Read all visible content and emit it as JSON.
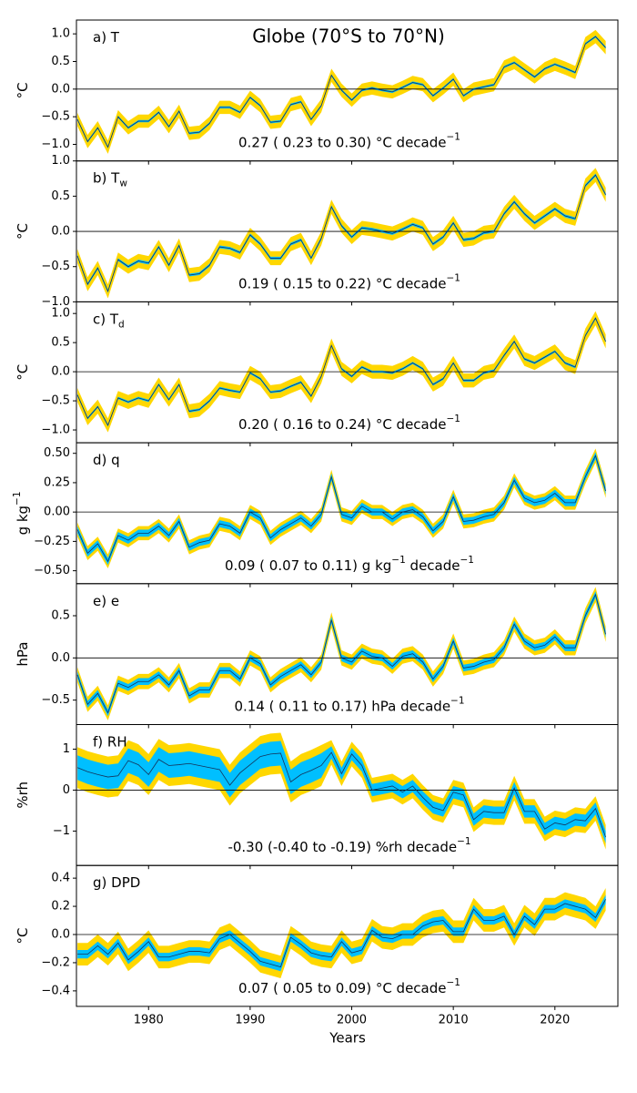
{
  "chart_data": {
    "type": "line",
    "title": "Globe (70°S to 70°N)",
    "xlabel": "Years",
    "colors": {
      "outer": "#ffd700",
      "inner": "#00bfff",
      "line": "#14325a"
    },
    "x": [
      1973,
      1974,
      1975,
      1976,
      1977,
      1978,
      1979,
      1980,
      1981,
      1982,
      1983,
      1984,
      1985,
      1986,
      1987,
      1988,
      1989,
      1990,
      1991,
      1992,
      1993,
      1994,
      1995,
      1996,
      1997,
      1998,
      1999,
      2000,
      2001,
      2002,
      2003,
      2004,
      2005,
      2006,
      2007,
      2008,
      2009,
      2010,
      2011,
      2012,
      2013,
      2014,
      2015,
      2016,
      2017,
      2018,
      2019,
      2020,
      2021,
      2022,
      2023,
      2024,
      2025
    ],
    "xlim": [
      1972.9,
      2026.2
    ],
    "xticks": [
      1980,
      1990,
      2000,
      2010,
      2020
    ],
    "panels": [
      {
        "label": [
          "a) T"
        ],
        "ylabel": [
          "°C"
        ],
        "trend": [
          "0.27 ( 0.23 to  0.30) °C decade",
          "−1"
        ],
        "ylim": [
          -1.3,
          1.25
        ],
        "yticks": [
          {
            "value": 1.0,
            "label": "1.0"
          },
          {
            "value": 0.5,
            "label": "0.5"
          },
          {
            "value": 0.0,
            "label": "0.0"
          },
          {
            "value": -0.5,
            "label": "−0.5"
          },
          {
            "value": -1.0,
            "label": "−1.0"
          }
        ],
        "band_inner": 0.02,
        "band_outer": 0.12,
        "values": [
          -0.55,
          -0.95,
          -0.7,
          -1.05,
          -0.5,
          -0.7,
          -0.58,
          -0.58,
          -0.42,
          -0.68,
          -0.4,
          -0.8,
          -0.78,
          -0.62,
          -0.33,
          -0.33,
          -0.42,
          -0.15,
          -0.3,
          -0.6,
          -0.58,
          -0.28,
          -0.23,
          -0.55,
          -0.3,
          0.25,
          -0.02,
          -0.2,
          -0.02,
          0.02,
          -0.02,
          -0.05,
          0.03,
          0.12,
          0.08,
          -0.12,
          0.02,
          0.18,
          -0.12,
          0.0,
          0.04,
          0.08,
          0.4,
          0.48,
          0.35,
          0.22,
          0.37,
          0.45,
          0.38,
          0.3,
          0.82,
          0.95,
          0.75
        ]
      },
      {
        "label": [
          "b) T",
          "w"
        ],
        "ylabel": [
          "°C"
        ],
        "trend": [
          "0.19 ( 0.15 to  0.22) °C decade",
          "−1"
        ],
        "ylim": [
          -1.0,
          1.0
        ],
        "yticks": [
          {
            "value": 1.0,
            "label": "1.0"
          },
          {
            "value": 0.5,
            "label": "0.5"
          },
          {
            "value": 0.0,
            "label": "0.0"
          },
          {
            "value": -0.5,
            "label": "−0.5"
          },
          {
            "value": -1.0,
            "label": "−1.0"
          }
        ],
        "band_inner": 0.02,
        "band_outer": 0.1,
        "values": [
          -0.35,
          -0.75,
          -0.52,
          -0.85,
          -0.4,
          -0.5,
          -0.42,
          -0.45,
          -0.22,
          -0.48,
          -0.2,
          -0.62,
          -0.6,
          -0.48,
          -0.22,
          -0.24,
          -0.3,
          -0.05,
          -0.18,
          -0.38,
          -0.38,
          -0.18,
          -0.12,
          -0.38,
          -0.1,
          0.35,
          0.08,
          -0.08,
          0.05,
          0.03,
          0.0,
          -0.03,
          0.03,
          0.1,
          0.05,
          -0.18,
          -0.08,
          0.12,
          -0.12,
          -0.1,
          -0.02,
          0.0,
          0.25,
          0.42,
          0.25,
          0.12,
          0.22,
          0.32,
          0.22,
          0.18,
          0.65,
          0.8,
          0.52
        ]
      },
      {
        "label": [
          "c) T",
          "d"
        ],
        "ylabel": [
          "°C"
        ],
        "trend": [
          "0.20 ( 0.16 to  0.24) °C decade",
          "−1"
        ],
        "ylim": [
          -1.22,
          1.2
        ],
        "yticks": [
          {
            "value": 1.0,
            "label": "1.0"
          },
          {
            "value": 0.5,
            "label": "0.5"
          },
          {
            "value": 0.0,
            "label": "0.0"
          },
          {
            "value": -0.5,
            "label": "−0.5"
          },
          {
            "value": -1.0,
            "label": "−1.0"
          }
        ],
        "band_inner": 0.02,
        "band_outer": 0.12,
        "values": [
          -0.4,
          -0.8,
          -0.6,
          -0.92,
          -0.45,
          -0.52,
          -0.45,
          -0.5,
          -0.22,
          -0.48,
          -0.22,
          -0.68,
          -0.65,
          -0.5,
          -0.28,
          -0.32,
          -0.35,
          -0.02,
          -0.12,
          -0.35,
          -0.33,
          -0.25,
          -0.18,
          -0.42,
          -0.08,
          0.45,
          0.05,
          -0.08,
          0.08,
          0.0,
          0.0,
          -0.02,
          0.05,
          0.15,
          0.05,
          -0.22,
          -0.12,
          0.15,
          -0.15,
          -0.15,
          -0.02,
          0.02,
          0.28,
          0.52,
          0.22,
          0.15,
          0.25,
          0.35,
          0.15,
          0.08,
          0.62,
          0.92,
          0.52
        ]
      },
      {
        "label": [
          "d) q"
        ],
        "ylabel": [
          "g kg",
          "−1"
        ],
        "trend": [
          "0.09 ( 0.07 to  0.11) g kg",
          "−1",
          " decade",
          "−1"
        ],
        "ylim": [
          -0.61,
          0.59
        ],
        "yticks": [
          {
            "value": 0.5,
            "label": "0.50"
          },
          {
            "value": 0.25,
            "label": "0.25"
          },
          {
            "value": 0.0,
            "label": "0.00"
          },
          {
            "value": -0.25,
            "label": "−0.25"
          },
          {
            "value": -0.5,
            "label": "−0.50"
          }
        ],
        "band_inner": 0.03,
        "band_outer": 0.06,
        "values": [
          -0.15,
          -0.35,
          -0.27,
          -0.42,
          -0.2,
          -0.24,
          -0.18,
          -0.18,
          -0.12,
          -0.2,
          -0.08,
          -0.3,
          -0.26,
          -0.24,
          -0.1,
          -0.12,
          -0.18,
          0.0,
          -0.05,
          -0.22,
          -0.15,
          -0.1,
          -0.05,
          -0.12,
          -0.02,
          0.3,
          -0.02,
          -0.05,
          0.05,
          0.0,
          0.0,
          -0.06,
          0.0,
          0.02,
          -0.04,
          -0.16,
          -0.08,
          0.13,
          -0.08,
          -0.07,
          -0.04,
          -0.02,
          0.08,
          0.27,
          0.12,
          0.08,
          0.1,
          0.16,
          0.08,
          0.08,
          0.3,
          0.48,
          0.18
        ]
      },
      {
        "label": [
          "e) e"
        ],
        "ylabel": [
          "hPa"
        ],
        "trend": [
          "0.14 ( 0.11 to  0.17) hPa decade",
          "−1"
        ],
        "ylim": [
          -0.79,
          0.88
        ],
        "yticks": [
          {
            "value": 0.5,
            "label": "0.5"
          },
          {
            "value": 0.0,
            "label": "0.0"
          },
          {
            "value": -0.5,
            "label": "−0.5"
          }
        ],
        "band_inner": 0.04,
        "band_outer": 0.09,
        "values": [
          -0.2,
          -0.55,
          -0.42,
          -0.65,
          -0.3,
          -0.35,
          -0.28,
          -0.28,
          -0.2,
          -0.32,
          -0.15,
          -0.45,
          -0.38,
          -0.38,
          -0.15,
          -0.15,
          -0.25,
          0.0,
          -0.07,
          -0.32,
          -0.22,
          -0.15,
          -0.08,
          -0.2,
          -0.05,
          0.45,
          0.0,
          -0.05,
          0.08,
          0.02,
          0.0,
          -0.1,
          0.02,
          0.05,
          -0.05,
          -0.25,
          -0.1,
          0.2,
          -0.12,
          -0.1,
          -0.05,
          -0.02,
          0.12,
          0.4,
          0.2,
          0.12,
          0.15,
          0.25,
          0.12,
          0.12,
          0.5,
          0.75,
          0.28
        ]
      },
      {
        "label": [
          "f) RH"
        ],
        "ylabel": [
          "%rh"
        ],
        "trend": [
          "-0.30 (-0.40 to -0.19) %rh decade",
          "−1"
        ],
        "ylim": [
          -1.84,
          1.6
        ],
        "yticks": [
          1,
          0,
          {
            "value": -1,
            "label": "−1"
          }
        ],
        "band_inner": [
          0.3,
          0.3,
          0.3,
          0.3,
          0.3,
          0.3,
          0.3,
          0.3,
          0.3,
          0.3,
          0.3,
          0.3,
          0.3,
          0.3,
          0.3,
          0.3,
          0.3,
          0.3,
          0.3,
          0.3,
          0.3,
          0.3,
          0.3,
          0.3,
          0.3,
          0.15,
          0.15,
          0.15,
          0.15,
          0.15,
          0.15,
          0.15,
          0.15,
          0.15,
          0.15,
          0.15,
          0.15,
          0.15,
          0.15,
          0.15,
          0.15,
          0.15,
          0.15,
          0.15,
          0.15,
          0.15,
          0.15,
          0.15,
          0.15,
          0.15,
          0.15,
          0.15,
          0.15
        ],
        "band_outer": [
          0.5,
          0.5,
          0.5,
          0.5,
          0.5,
          0.5,
          0.5,
          0.5,
          0.5,
          0.5,
          0.5,
          0.5,
          0.5,
          0.5,
          0.5,
          0.5,
          0.5,
          0.5,
          0.5,
          0.5,
          0.5,
          0.5,
          0.5,
          0.5,
          0.5,
          0.3,
          0.3,
          0.3,
          0.3,
          0.3,
          0.3,
          0.3,
          0.3,
          0.3,
          0.3,
          0.3,
          0.3,
          0.3,
          0.3,
          0.3,
          0.3,
          0.3,
          0.3,
          0.3,
          0.3,
          0.3,
          0.3,
          0.3,
          0.3,
          0.3,
          0.3,
          0.3,
          0.3
        ],
        "values": [
          0.55,
          0.45,
          0.38,
          0.32,
          0.35,
          0.72,
          0.62,
          0.38,
          0.75,
          0.6,
          0.62,
          0.65,
          0.6,
          0.55,
          0.5,
          0.12,
          0.42,
          0.62,
          0.82,
          0.88,
          0.9,
          0.2,
          0.38,
          0.48,
          0.6,
          0.92,
          0.4,
          0.88,
          0.6,
          0.0,
          0.05,
          0.1,
          -0.05,
          0.1,
          -0.18,
          -0.42,
          -0.5,
          -0.05,
          -0.12,
          -0.72,
          -0.52,
          -0.55,
          -0.55,
          0.05,
          -0.52,
          -0.52,
          -0.95,
          -0.8,
          -0.85,
          -0.72,
          -0.75,
          -0.45,
          -1.15
        ]
      },
      {
        "label": [
          "g) DPD"
        ],
        "ylabel": [
          "°C"
        ],
        "trend": [
          "0.07 ( 0.05 to  0.09) °C decade",
          "−1"
        ],
        "ylim": [
          -0.51,
          0.49
        ],
        "yticks": [
          0.4,
          0.2,
          {
            "value": 0.0,
            "label": "0.0"
          },
          {
            "value": -0.2,
            "label": "−0.2"
          },
          {
            "value": -0.4,
            "label": "−0.4"
          }
        ],
        "band_inner": 0.03,
        "band_outer": 0.08,
        "values": [
          -0.14,
          -0.14,
          -0.08,
          -0.14,
          -0.06,
          -0.18,
          -0.12,
          -0.05,
          -0.16,
          -0.16,
          -0.14,
          -0.12,
          -0.12,
          -0.13,
          -0.03,
          0.0,
          -0.06,
          -0.12,
          -0.19,
          -0.21,
          -0.23,
          -0.02,
          -0.07,
          -0.13,
          -0.15,
          -0.16,
          -0.05,
          -0.13,
          -0.11,
          0.03,
          -0.02,
          -0.03,
          0.0,
          0.0,
          0.06,
          0.09,
          0.1,
          0.02,
          0.02,
          0.18,
          0.1,
          0.1,
          0.13,
          0.0,
          0.13,
          0.07,
          0.18,
          0.18,
          0.22,
          0.2,
          0.18,
          0.12,
          0.25
        ]
      }
    ]
  }
}
